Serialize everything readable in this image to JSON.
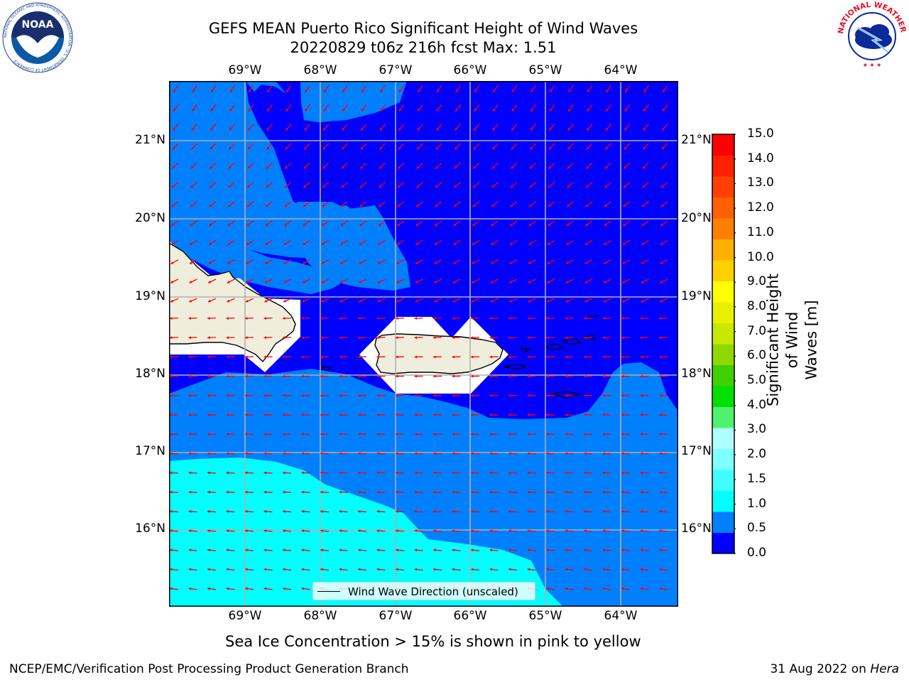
{
  "title": {
    "line1": "GEFS MEAN Puerto Rico Significant Height of Wind Waves",
    "line2": "20220829 t06z 216h fcst   Max: 1.51"
  },
  "logos": {
    "noaa": {
      "text": "NOAA",
      "ring_text": "NATIONAL OCEANIC AND ATMOSPHERIC ADMINISTRATION · U.S. DEPARTMENT OF COMMERCE"
    },
    "nws": {
      "ring_text": "NATIONAL WEATHER SERVICE"
    }
  },
  "map": {
    "lon_labels": [
      "69°W",
      "68°W",
      "67°W",
      "66°W",
      "65°W",
      "64°W"
    ],
    "lat_labels": [
      "21°N",
      "20°N",
      "19°N",
      "18°N",
      "17°N",
      "16°N"
    ],
    "lon_range": [
      -70,
      -63.25
    ],
    "lat_range": [
      15,
      21.75
    ],
    "gridlines": true,
    "legend": {
      "label": "Wind Wave Direction (unscaled)",
      "placement": "bottom-center"
    },
    "arrow_color": "#ff0000",
    "land_color": "#efeedd"
  },
  "colorbar": {
    "label": "Significant Height of Wind Waves [m]",
    "ticks": [
      "0.0",
      "0.5",
      "1.0",
      "1.5",
      "2.0",
      "3.0",
      "4.0",
      "5.0",
      "6.0",
      "7.0",
      "8.0",
      "9.0",
      "10.0",
      "11.0",
      "12.0",
      "13.0",
      "14.0",
      "15.0"
    ],
    "colors": [
      "#0000ff",
      "#0080ff",
      "#00ffff",
      "#40ffff",
      "#80ffff",
      "#b0ffff",
      "#50f070",
      "#00e000",
      "#40d000",
      "#90d800",
      "#c8e800",
      "#e8f000",
      "#ffff00",
      "#ffd000",
      "#ffb000",
      "#ff8000",
      "#ff6000",
      "#ff4000",
      "#ff2000",
      "#ff0000"
    ]
  },
  "sea_ice_note": "Sea Ice Concentration > 15% is shown in pink to yellow",
  "footer": {
    "left": "NCEP/EMC/Verification Post Processing Product Generation Branch",
    "right_prefix": "31 Aug 2022 on ",
    "right_italic": "Hera"
  }
}
